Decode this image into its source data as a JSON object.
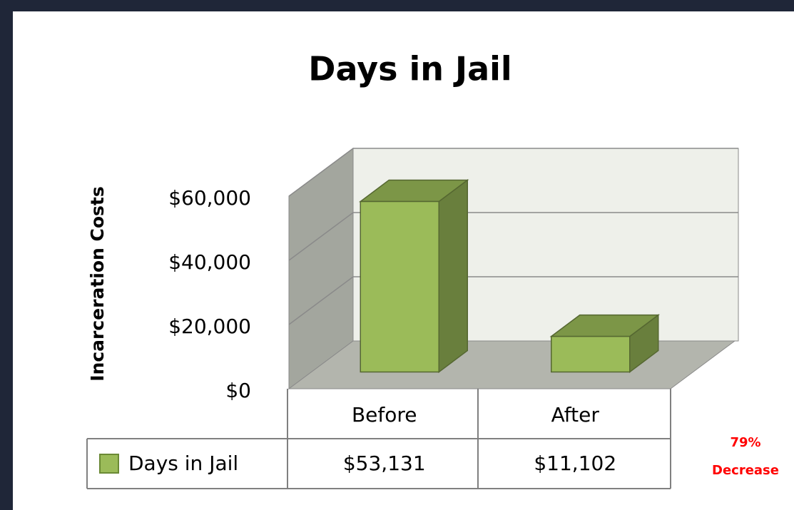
{
  "chart_data": {
    "type": "bar3d",
    "title": "Days in Jail",
    "y_label": "Incarceration Costs",
    "categories": [
      "Before",
      "After"
    ],
    "series": [
      {
        "name": "Days in Jail",
        "color": "#9bbb59",
        "values": [
          53131,
          11102
        ],
        "value_labels": [
          "$53,131",
          "$11,102"
        ]
      }
    ],
    "ylim": [
      0,
      60000
    ],
    "yticks": [
      {
        "value": 0,
        "label": "$0"
      },
      {
        "value": 20000,
        "label": "$20,000"
      },
      {
        "value": 40000,
        "label": "$40,000"
      },
      {
        "value": 60000,
        "label": "$60,000"
      }
    ],
    "grid": true,
    "annotation": [
      "79%",
      "Decrease"
    ]
  }
}
